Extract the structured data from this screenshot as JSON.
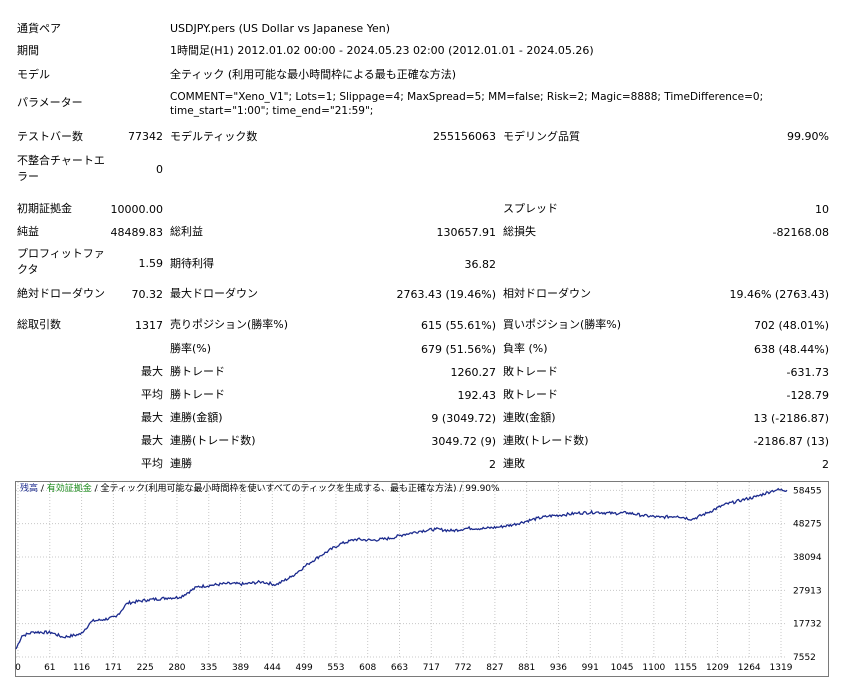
{
  "settings": {
    "symbol": {
      "label": "通貨ペア",
      "value": "USDJPY.pers (US Dollar vs Japanese Yen)"
    },
    "period": {
      "label": "期間",
      "value": "1時間足(H1) 2012.01.02 00:00 - 2024.05.23 02:00 (2012.01.01 - 2024.05.26)"
    },
    "model": {
      "label": "モデル",
      "value": "全ティック (利用可能な最小時間枠による最も正確な方法)"
    },
    "params": {
      "label": "パラメーター",
      "value": "COMMENT=\"Xeno_V1\"; Lots=1; Slippage=4; MaxSpread=5; MM=false; Risk=2; Magic=8888; TimeDifference=0; time_start=\"1:00\"; time_end=\"21:59\";"
    }
  },
  "stats": {
    "bars": {
      "label": "テストバー数",
      "value": "77342"
    },
    "ticks": {
      "label": "モデルティック数",
      "value": "255156063"
    },
    "quality": {
      "label": "モデリング品質",
      "value": "99.90%"
    },
    "mismatch": {
      "label": "不整合チャートエラー",
      "value": "0"
    },
    "deposit": {
      "label": "初期証拠金",
      "value": "10000.00"
    },
    "spread": {
      "label": "スプレッド",
      "value": "10"
    },
    "net": {
      "label": "純益",
      "value": "48489.83"
    },
    "gross_profit": {
      "label": "総利益",
      "value": "130657.91"
    },
    "gross_loss": {
      "label": "総損失",
      "value": "-82168.08"
    },
    "pf": {
      "label": "プロフィットファクタ",
      "value": "1.59"
    },
    "expected": {
      "label": "期待利得",
      "value": "36.82"
    },
    "abs_dd": {
      "label": "絶対ドローダウン",
      "value": "70.32"
    },
    "max_dd": {
      "label": "最大ドローダウン",
      "value": "2763.43 (19.46%)"
    },
    "rel_dd": {
      "label": "相対ドローダウン",
      "value": "19.46% (2763.43)"
    },
    "total_trades": {
      "label": "総取引数",
      "value": "1317"
    },
    "short": {
      "label": "売りポジション(勝率%)",
      "value": "615 (55.61%)"
    },
    "long": {
      "label": "買いポジション(勝率%)",
      "value": "702 (48.01%)"
    },
    "win_rate": {
      "label": "勝率(%)",
      "value": "679 (51.56%)"
    },
    "loss_rate": {
      "label": "負率 (%)",
      "value": "638 (48.44%)"
    },
    "largest_label": "最大",
    "average_label": "平均",
    "max_label": "最大",
    "max2_label": "最大",
    "avg2_label": "平均",
    "largest_win": {
      "label": "勝トレード",
      "value": "1260.27"
    },
    "largest_loss": {
      "label": "敗トレード",
      "value": "-631.73"
    },
    "avg_win": {
      "label": "勝トレード",
      "value": "192.43"
    },
    "avg_loss": {
      "label": "敗トレード",
      "value": "-128.79"
    },
    "max_consec_wins": {
      "label": "連勝(金額)",
      "value": "9 (3049.72)"
    },
    "max_consec_losses": {
      "label": "連敗(金額)",
      "value": "13 (-2186.87)"
    },
    "max_consec_profit": {
      "label": "連勝(トレード数)",
      "value": "3049.72 (9)"
    },
    "max_consec_loss": {
      "label": "連敗(トレード数)",
      "value": "-2186.87 (13)"
    },
    "avg_consec_wins": {
      "label": "連勝",
      "value": "2"
    },
    "avg_consec_losses": {
      "label": "連敗",
      "value": "2"
    }
  },
  "chart": {
    "legend_balance": "残高",
    "legend_sep": " / ",
    "legend_equity": "有効証拠金",
    "legend_rest": " / 全ティック(利用可能な最小時間枠を使いすべてのティックを生成する、最も正確な方法) / 99.90%"
  },
  "chart_data": {
    "type": "line",
    "xlim": [
      0,
      1317
    ],
    "ylim": [
      7552,
      61000
    ],
    "x_ticks": [
      "0",
      "61",
      "116",
      "171",
      "225",
      "280",
      "335",
      "389",
      "444",
      "499",
      "553",
      "608",
      "663",
      "717",
      "772",
      "827",
      "881",
      "936",
      "991",
      "1045",
      "1100",
      "1155",
      "1209",
      "1264",
      "1319"
    ],
    "y_ticks": [
      58455,
      48275,
      38094,
      27913,
      17732,
      7552
    ],
    "grid": true,
    "line_color": "#1c2b8e",
    "series": [
      {
        "x": [
          0,
          10,
          30,
          61,
          80,
          110,
          130,
          150,
          171,
          190,
          225,
          260,
          280,
          310,
          335,
          360,
          389,
          420,
          444,
          470,
          499,
          520,
          553,
          580,
          608,
          640,
          663,
          690,
          717,
          745,
          772,
          800,
          827,
          850,
          881,
          910,
          936,
          960,
          991,
          1020,
          1045,
          1070,
          1100,
          1130,
          1155,
          1180,
          1209,
          1240,
          1264,
          1290,
          1300,
          1317
        ],
        "values": [
          10000,
          14000,
          15200,
          15000,
          13600,
          14500,
          18500,
          19000,
          19800,
          24000,
          25000,
          25600,
          25800,
          29000,
          29500,
          30000,
          29800,
          30500,
          29600,
          32000,
          36000,
          38500,
          42000,
          43500,
          43200,
          43800,
          45000,
          46000,
          46600,
          46100,
          46900,
          46800,
          47300,
          48000,
          49500,
          50600,
          51000,
          51500,
          51800,
          51400,
          51600,
          50800,
          50200,
          50600,
          49600,
          51500,
          54000,
          55500,
          56500,
          58200,
          58600,
          58489
        ]
      }
    ]
  }
}
